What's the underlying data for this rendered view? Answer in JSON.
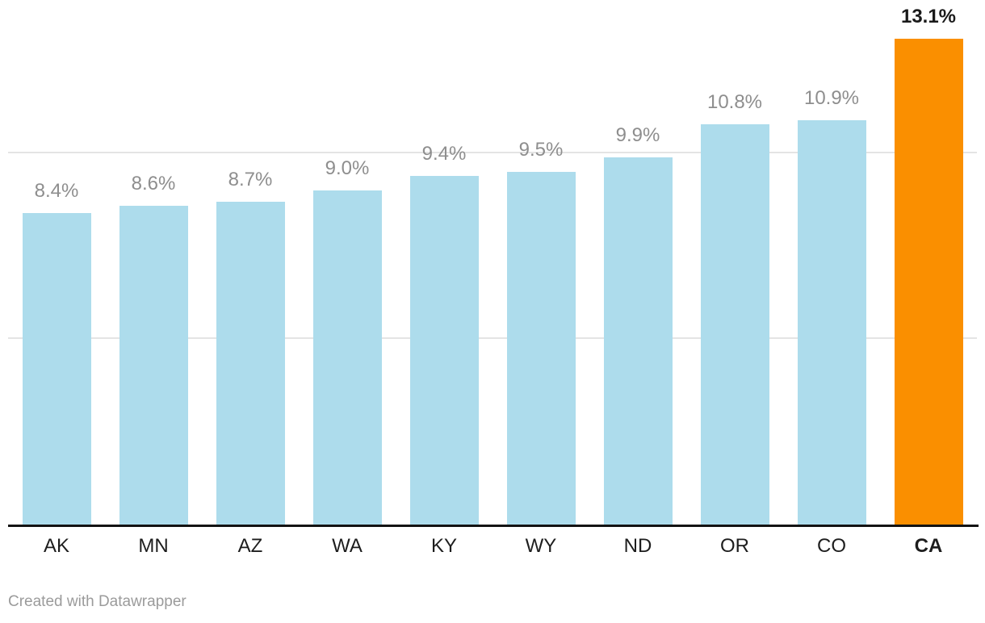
{
  "chart_data": {
    "type": "bar",
    "categories": [
      "AK",
      "MN",
      "AZ",
      "WA",
      "KY",
      "WY",
      "ND",
      "OR",
      "CO",
      "CA"
    ],
    "values": [
      8.4,
      8.6,
      8.7,
      9.0,
      9.4,
      9.5,
      9.9,
      10.8,
      10.9,
      13.1
    ],
    "value_labels": [
      "8.4%",
      "8.6%",
      "8.7%",
      "9.0%",
      "9.4%",
      "9.5%",
      "9.9%",
      "10.8%",
      "10.9%",
      "13.1%"
    ],
    "highlight_index": 9,
    "highlight_category": "CA",
    "title": "",
    "xlabel": "",
    "ylabel": "",
    "ylim": [
      0,
      13.1
    ],
    "gridline_values": [
      5,
      10
    ],
    "grid": "horizontal",
    "legend": "none",
    "colors": {
      "bar": "#addcec",
      "highlight_bar": "#fa8f00",
      "gridline": "#e4e4e4",
      "baseline": "#131313",
      "value_label": "#8e8e8e",
      "highlight_value_label": "#1a1a1a",
      "axis_label": "#1d1d1d",
      "background": "#ffffff"
    }
  },
  "footer": {
    "credit": "Created with Datawrapper"
  }
}
